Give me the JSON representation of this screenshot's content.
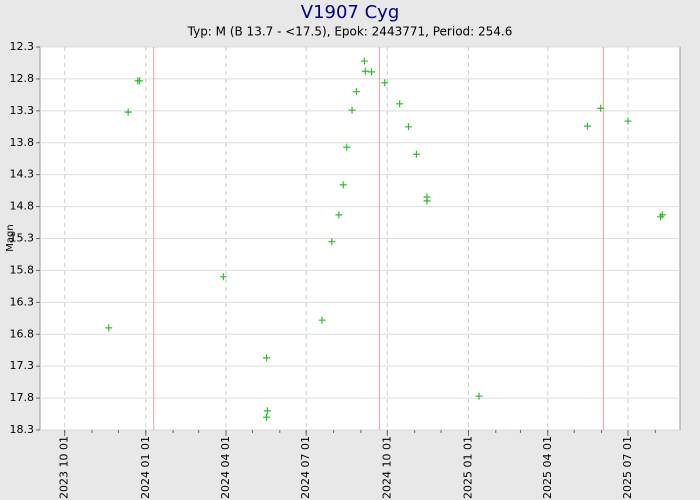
{
  "chart_data": {
    "type": "scatter",
    "title": "V1907 Cyg",
    "subtitle": "Typ: M (B 13.7 - <17.5), Epok: 2443771, Period: 254.6",
    "y_label": "Magn",
    "y_inverted": true,
    "grid": true,
    "xlim": [
      "2023-09-03",
      "2025-08-29"
    ],
    "xticks": [
      {
        "value": "2023-10-01",
        "label": "2023 10 01"
      },
      {
        "value": "2024-01-01",
        "label": "2024 01 01"
      },
      {
        "value": "2024-04-01",
        "label": "2024 04 01"
      },
      {
        "value": "2024-07-01",
        "label": "2024 07 01"
      },
      {
        "value": "2024-10-01",
        "label": "2024 10 01"
      },
      {
        "value": "2025-01-01",
        "label": "2025 01 01"
      },
      {
        "value": "2025-04-01",
        "label": "2025 04 01"
      },
      {
        "value": "2025-07-01",
        "label": "2025 07 01"
      }
    ],
    "ylim": [
      12.3,
      18.3
    ],
    "yticks": [
      12.3,
      12.8,
      13.3,
      13.8,
      14.3,
      14.8,
      15.3,
      15.8,
      16.3,
      16.8,
      17.3,
      17.8,
      18.3
    ],
    "epoch_lines": {
      "color": "#e8a0a0",
      "x": [
        "2024-01-10",
        "2024-09-22",
        "2025-06-03"
      ]
    },
    "series": [
      {
        "name": "V1907 Cyg",
        "color": "#33bb33",
        "x": [
          "2023-11-20",
          "2023-12-12",
          "2023-12-23",
          "2023-12-25",
          "2024-03-29",
          "2024-05-17",
          "2024-05-18",
          "2024-05-17",
          "2024-07-19",
          "2024-07-30",
          "2024-08-07",
          "2024-08-12",
          "2024-08-16",
          "2024-08-22",
          "2024-08-27",
          "2024-09-05",
          "2024-09-06",
          "2024-09-13",
          "2024-09-28",
          "2024-10-15",
          "2024-10-25",
          "2024-11-03",
          "2024-11-15",
          "2024-11-15",
          "2025-01-13",
          "2025-05-16",
          "2025-05-31",
          "2025-07-01",
          "2025-08-07",
          "2025-08-09"
        ],
        "values": [
          16.7,
          13.32,
          12.83,
          12.83,
          15.9,
          17.17,
          18.0,
          18.1,
          16.58,
          15.35,
          14.93,
          14.46,
          13.87,
          13.29,
          13.0,
          12.52,
          12.68,
          12.69,
          12.86,
          13.19,
          13.55,
          13.98,
          14.65,
          14.71,
          17.77,
          13.54,
          13.26,
          13.46,
          14.96,
          14.93
        ]
      }
    ]
  }
}
